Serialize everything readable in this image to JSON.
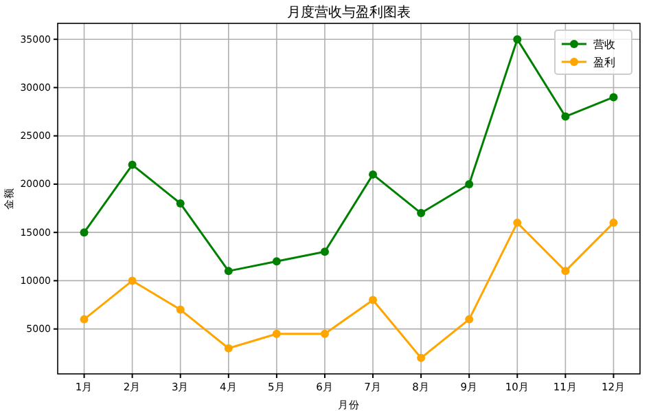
{
  "chart_data": {
    "type": "line",
    "title": "月度营收与盈利图表",
    "xlabel": "月份",
    "ylabel": "金额",
    "categories": [
      "1月",
      "2月",
      "3月",
      "4月",
      "5月",
      "6月",
      "7月",
      "8月",
      "9月",
      "10月",
      "11月",
      "12月"
    ],
    "series": [
      {
        "name": "营收",
        "color": "#008000",
        "values": [
          15000,
          22000,
          18000,
          11000,
          12000,
          13000,
          21000,
          17000,
          20000,
          35000,
          27000,
          29000
        ]
      },
      {
        "name": "盈利",
        "color": "#ffa500",
        "values": [
          6000,
          10000,
          7000,
          3000,
          4500,
          4500,
          8000,
          2000,
          6000,
          16000,
          11000,
          16000
        ]
      }
    ],
    "ylim": [
      350,
      36650
    ],
    "yticks": [
      5000,
      10000,
      15000,
      20000,
      25000,
      30000,
      35000
    ],
    "grid": true,
    "legend": "top right",
    "marker": "circle",
    "line_style": "solid"
  }
}
